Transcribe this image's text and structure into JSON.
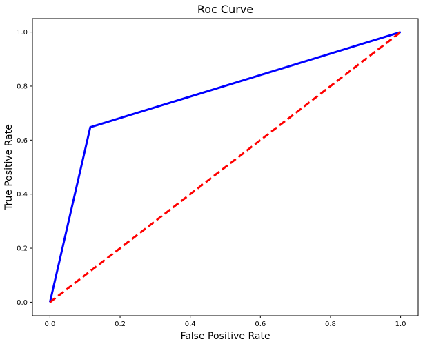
{
  "chart_data": {
    "type": "line",
    "title": "Roc Curve",
    "xlabel": "False Positive Rate",
    "ylabel": "True Positive Rate",
    "xlim": [
      -0.05,
      1.05
    ],
    "ylim": [
      -0.05,
      1.05
    ],
    "xticks": [
      0.0,
      0.2,
      0.4,
      0.6,
      0.8,
      1.0
    ],
    "yticks": [
      0.0,
      0.2,
      0.4,
      0.6,
      0.8,
      1.0
    ],
    "xtick_labels": [
      "0.0",
      "0.2",
      "0.4",
      "0.6",
      "0.8",
      "1.0"
    ],
    "ytick_labels": [
      "0.0",
      "0.2",
      "0.4",
      "0.6",
      "0.8",
      "1.0"
    ],
    "grid": false,
    "series": [
      {
        "x": [
          0.0,
          0.115,
          1.0
        ],
        "y": [
          0.0,
          0.648,
          1.0
        ],
        "color": "#0000ff",
        "style": "solid"
      },
      {
        "x": [
          0.0,
          1.0
        ],
        "y": [
          0.0,
          1.0
        ],
        "color": "#ff0000",
        "style": "dashed"
      }
    ]
  }
}
